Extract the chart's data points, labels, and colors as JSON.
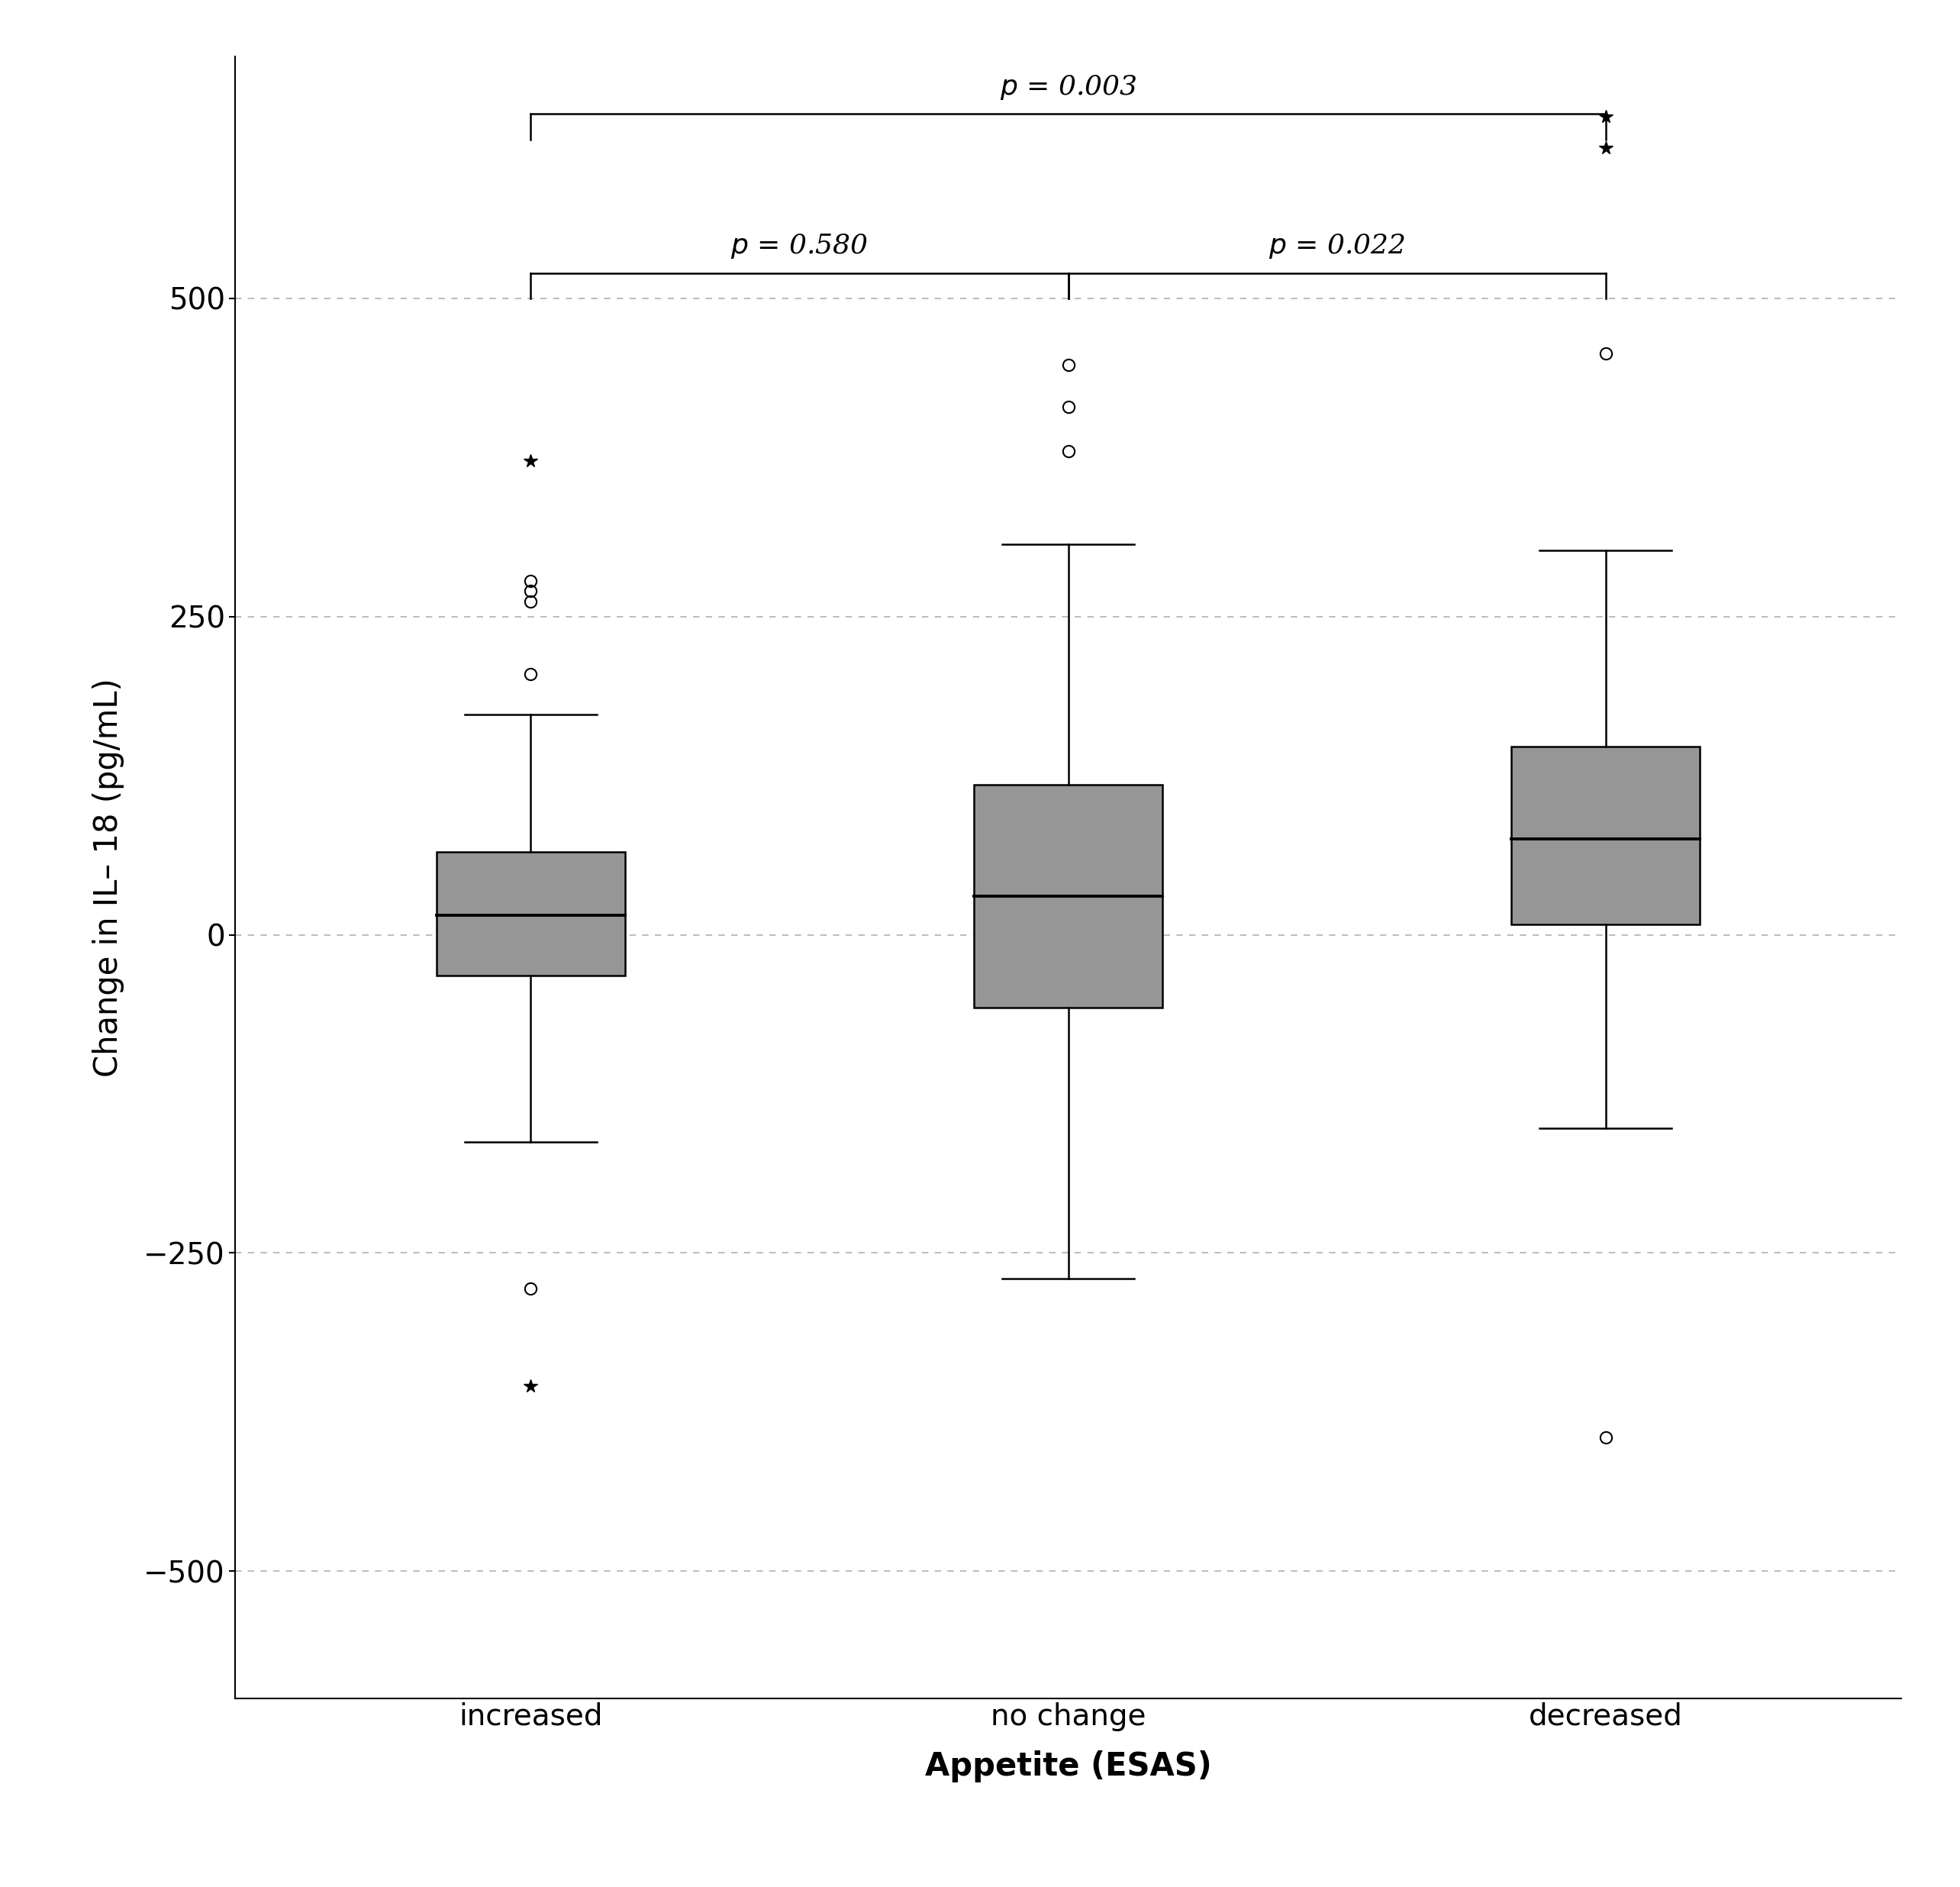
{
  "categories": [
    "increased",
    "no change",
    "decreased"
  ],
  "boxes": [
    {
      "label": "increased",
      "q1": -32,
      "median": 15,
      "q3": 65,
      "whisker_low": -163,
      "whisker_high": 173,
      "outliers_circle": [
        205,
        262,
        270,
        278
      ],
      "outliers_star": [
        372
      ],
      "outliers_circle_low": [
        -278
      ],
      "outliers_star_low": [
        -355
      ]
    },
    {
      "label": "no change",
      "q1": -57,
      "median": 30,
      "q3": 118,
      "whisker_low": -270,
      "whisker_high": 307,
      "outliers_circle": [
        380,
        415,
        448
      ],
      "outliers_star": [],
      "outliers_circle_low": [],
      "outliers_star_low": []
    },
    {
      "label": "decreased",
      "q1": 8,
      "median": 75,
      "q3": 148,
      "whisker_low": -152,
      "whisker_high": 302,
      "outliers_circle": [
        457
      ],
      "outliers_star": [
        618,
        643
      ],
      "outliers_circle_low": [
        -395
      ],
      "outliers_star_low": []
    }
  ],
  "ylabel": "Change in IL– 18 (pg/mL)",
  "xlabel": "Appetite (ESAS)",
  "ylim": [
    -600,
    690
  ],
  "yticks": [
    -500,
    -250,
    0,
    250,
    500
  ],
  "box_color": "#969696",
  "box_width": 0.35,
  "background_color": "#ffffff",
  "grid_color": "#b0b0b0",
  "label_fontsize": 30,
  "tick_fontsize": 28,
  "annot_fontsize": 26
}
